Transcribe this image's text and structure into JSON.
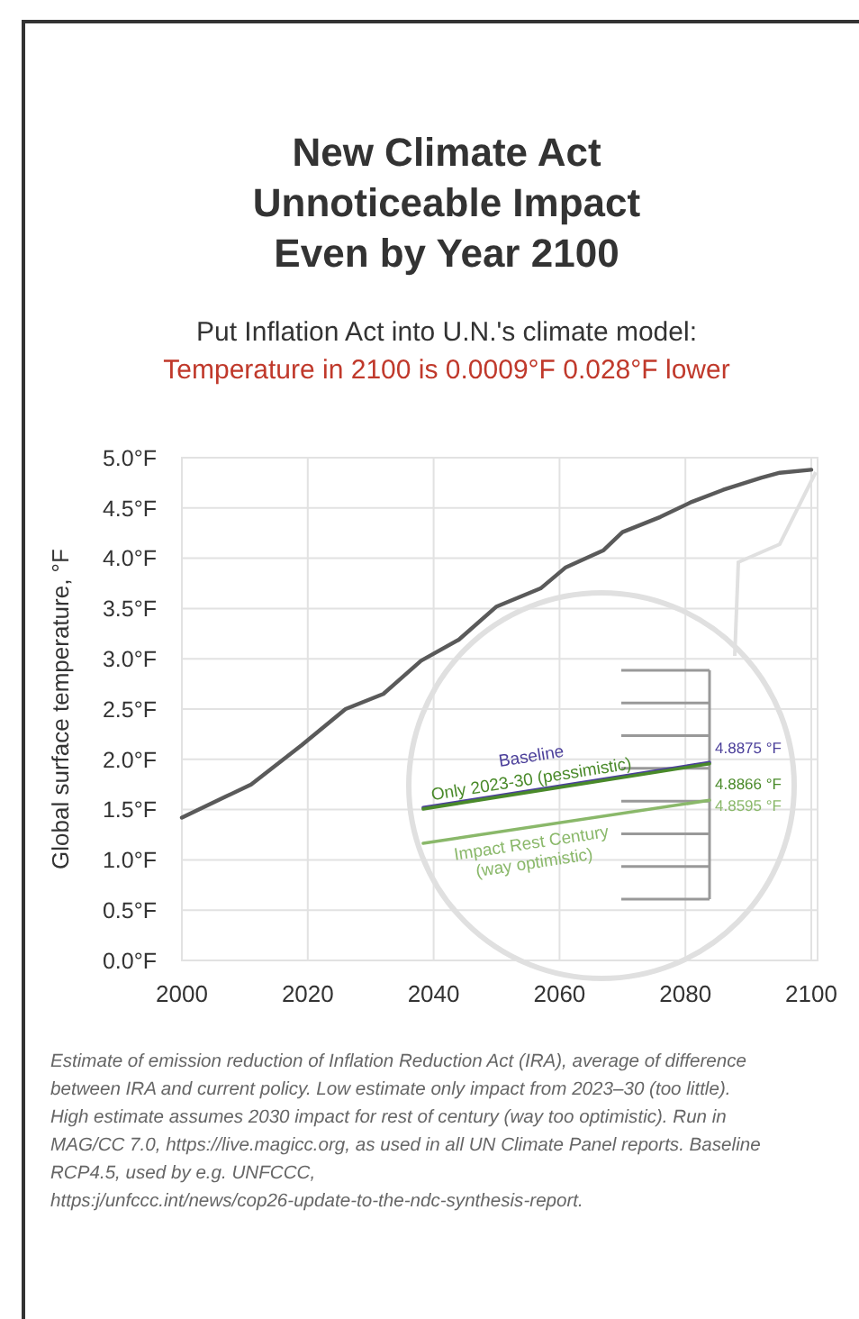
{
  "chart_data": [
    {
      "type": "line",
      "title": "New Climate Act\nUnnoticeable Impact\nEven by Year 2100",
      "subtitle": "Put Inflation Act into U.N.'s climate model:\nTemperature in 2100 is 0.0009°F 0.028°F lower",
      "ylabel": "Global surface temperature, °F",
      "x": [
        2000,
        2007,
        2011,
        2019,
        2026,
        2032,
        2038,
        2044,
        2050,
        2057,
        2061,
        2067,
        2070,
        2076,
        2081,
        2086,
        2092,
        2095,
        2100
      ],
      "series": [
        {
          "color": "#5a5a5a",
          "values": [
            1.42,
            1.63,
            1.75,
            2.14,
            2.5,
            2.65,
            2.98,
            3.19,
            3.52,
            3.7,
            3.91,
            4.08,
            4.26,
            4.41,
            4.56,
            4.68,
            4.8,
            4.85,
            4.88
          ]
        }
      ],
      "xlim": [
        2000,
        2101
      ],
      "xticks": [
        2000,
        2020,
        2040,
        2060,
        2080,
        2100
      ],
      "ylim": [
        0,
        5
      ],
      "yticks": [
        {
          "value": 0,
          "label": "0.0°F"
        },
        {
          "value": 0.5,
          "label": "0.5°F"
        },
        {
          "value": 1,
          "label": "1.0°F"
        },
        {
          "value": 1.5,
          "label": "1.5°F"
        },
        {
          "value": 2,
          "label": "2.0°F"
        },
        {
          "value": 2.5,
          "label": "2.5°F"
        },
        {
          "value": 3,
          "label": "3.0°F"
        },
        {
          "value": 3.5,
          "label": "3.5°F"
        },
        {
          "value": 4,
          "label": "4.0°F"
        },
        {
          "value": 4.5,
          "label": "4.5°F"
        },
        {
          "value": 5,
          "label": "5.0°F"
        }
      ],
      "grid": true,
      "annotations": [
        "Estimate of emission reduction of Inflation Reduction Act (IRA), average of difference between IRA and current policy. Low estimate only impact from 2023–30 (too little). High estimate assumes 2030 impact for rest of century (way too optimistic). Run in MAG/CC 7.0, https://live.magicc.org, as used in all UN Climate Panel reports. Baseline RCP4.5, used by e.g. UNFCCC, https:j/unfccc.int/news/cop26-update-to-the-ndc-synthesis-report."
      ]
    },
    {
      "type": "line",
      "categories": [
        null,
        null
      ],
      "series": [
        {
          "name": "Baseline",
          "color": "#4b3f9a",
          "values": [
            4.854,
            4.8875
          ],
          "value_labels": [
            null,
            "4.8875 °F"
          ]
        },
        {
          "name": "Only 2023-30 (pessimistic)",
          "color": "#4a8a2a",
          "values": [
            4.853,
            4.8866
          ],
          "value_labels": [
            null,
            "4.8866 °F"
          ]
        },
        {
          "name": "Impact Rest Century (way optimistic)",
          "color": "#8ab86a",
          "values": [
            4.8275,
            4.8595
          ],
          "value_labels": [
            null,
            "4.8595 °F"
          ]
        }
      ],
      "ylim": [
        4.786,
        4.956
      ]
    }
  ]
}
